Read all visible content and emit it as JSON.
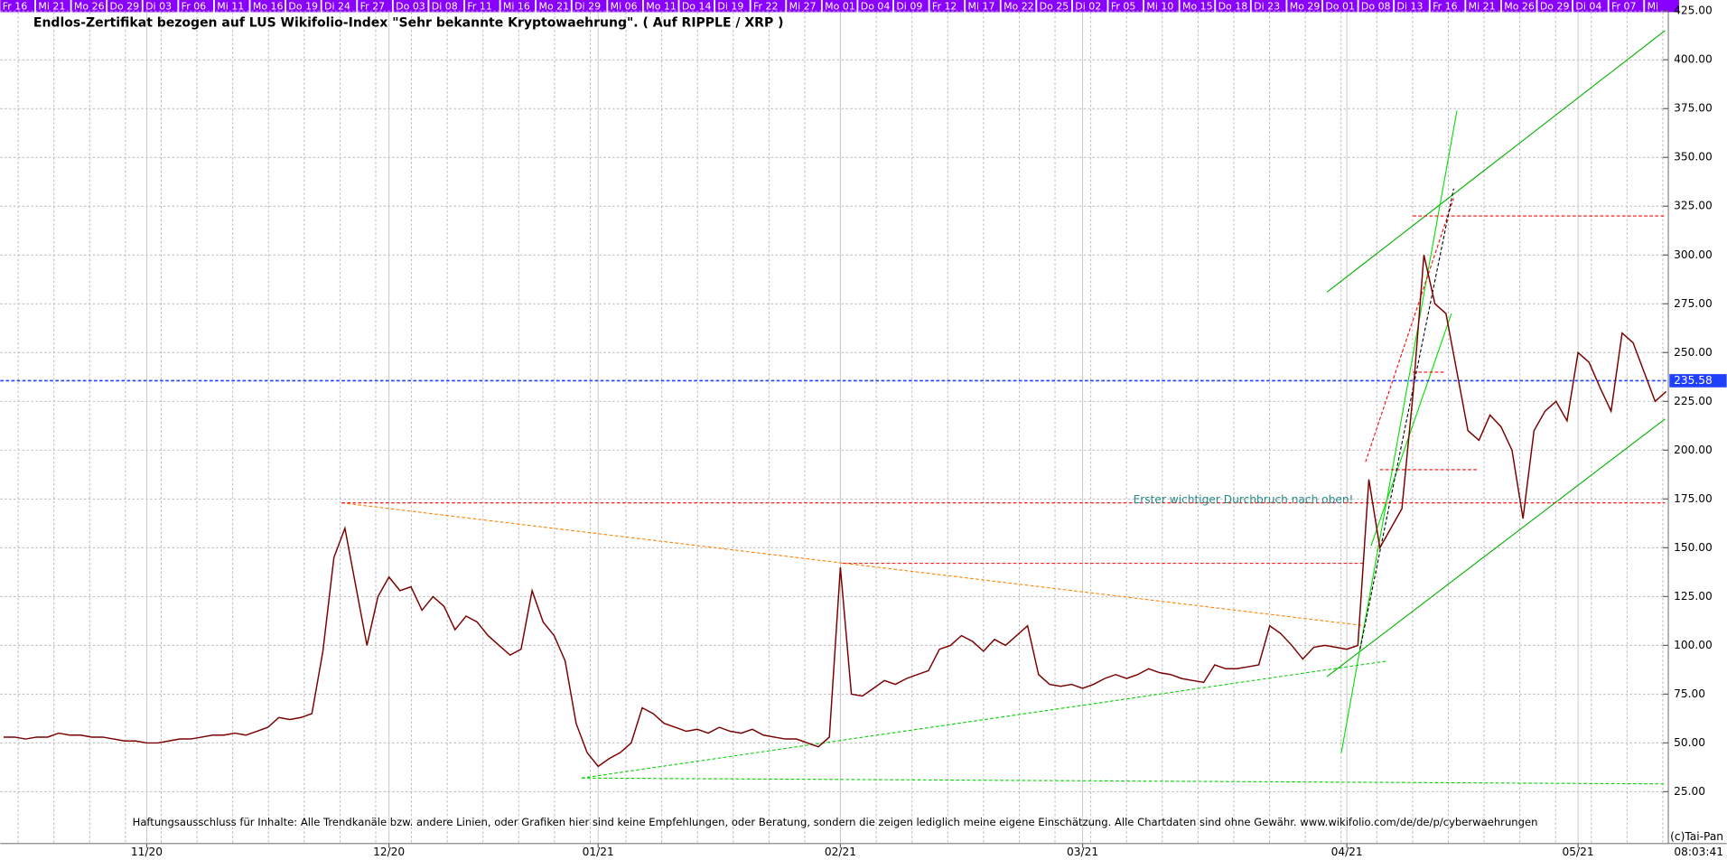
{
  "chart_data": {
    "type": "line",
    "title": "Endlos-Zertifikat bezogen auf LUS Wikifolio-Index \"Sehr bekannte Kryptowaehrung\". ( Auf RIPPLE / XRP )",
    "disclaimer": "Haftungsausschluss für Inhalte: Alle Trendkanäle bzw. andere Linien, oder Grafiken hier sind keine Empfehlungen, oder Beratung, sondern die zeigen lediglich meine eigene Einschätzung. Alle Chartdaten sind ohne Gewähr.  www.wikifolio.com/de/de/p/cyberwaehrungen",
    "annotation": {
      "text": "Erster wichtiger Durchbruch nach oben!",
      "x": 123,
      "y": 180
    },
    "copyright": "(c)Tai-Pan",
    "time": "08:03:41",
    "top_dates": [
      "Fr 16",
      "Mi 21",
      "Mo 26",
      "Do 29",
      "Di 03",
      "Fr 06",
      "Mi 11",
      "Mo 16",
      "Do 19",
      "Di 24",
      "Fr 27",
      "Do 03",
      "Di 08",
      "Fr 11",
      "Mi 16",
      "Mo 21",
      "Di 29",
      "Mi 06",
      "Mo 11",
      "Do 14",
      "Di 19",
      "Fr 22",
      "Mi 27",
      "Mo 01",
      "Do 04",
      "Di 09",
      "Fr 12",
      "Mi 17",
      "Mo 22",
      "Do 25",
      "Di 02",
      "Fr 05",
      "Mi 10",
      "Mo 15",
      "Do 18",
      "Di 23",
      "Mo 29",
      "Do 01",
      "Do 08",
      "Di 13",
      "Fr 16",
      "Mi 21",
      "Mo 26",
      "Do 29",
      "Di 04",
      "Fr 07",
      "Mi"
    ],
    "series": [
      {
        "color": "#7a0000",
        "values": [
          53,
          53,
          52,
          53,
          53,
          55,
          54,
          54,
          53,
          53,
          52,
          51,
          51,
          50,
          50,
          51,
          52,
          52,
          53,
          54,
          54,
          55,
          54,
          56,
          58,
          63,
          62,
          63,
          65,
          97,
          145,
          160,
          130,
          100,
          125,
          135,
          128,
          130,
          118,
          125,
          120,
          108,
          115,
          112,
          105,
          100,
          95,
          98,
          128,
          112,
          105,
          92,
          60,
          45,
          38,
          42,
          45,
          50,
          68,
          65,
          60,
          58,
          56,
          57,
          55,
          58,
          56,
          55,
          57,
          54,
          53,
          52,
          52,
          50,
          48,
          53,
          140,
          75,
          74,
          78,
          82,
          80,
          83,
          85,
          87,
          98,
          100,
          105,
          102,
          97,
          103,
          100,
          105,
          110,
          85,
          80,
          79,
          80,
          78,
          80,
          83,
          85,
          83,
          85,
          88,
          86,
          85,
          83,
          82,
          81,
          90,
          88,
          88,
          89,
          90,
          110,
          106,
          100,
          93,
          99,
          100,
          99,
          98,
          100,
          185,
          150,
          160,
          170,
          228,
          300,
          275,
          270,
          240,
          210,
          205,
          218,
          212,
          200,
          165,
          210,
          220,
          225,
          215,
          250,
          245,
          232,
          220,
          260,
          255,
          240,
          225,
          230
        ]
      }
    ],
    "xlim": [
      0,
      151
    ],
    "xticks": [
      {
        "value": 13,
        "label": "11/20"
      },
      {
        "value": 35,
        "label": "12/20"
      },
      {
        "value": 54,
        "label": "01/21"
      },
      {
        "value": 76,
        "label": "02/21"
      },
      {
        "value": 98,
        "label": "03/21"
      },
      {
        "value": 122,
        "label": "04/21"
      },
      {
        "value": 143,
        "label": "05/21"
      }
    ],
    "ylim": [
      25,
      425
    ],
    "yticks": [
      {
        "value": 25,
        "label": "25.00"
      },
      {
        "value": 50,
        "label": "50.00"
      },
      {
        "value": 75,
        "label": "75.00"
      },
      {
        "value": 100,
        "label": "100.00"
      },
      {
        "value": 125,
        "label": "125.00"
      },
      {
        "value": 150,
        "label": "150.00"
      },
      {
        "value": 175,
        "label": "175.00"
      },
      {
        "value": 200,
        "label": "200.00"
      },
      {
        "value": 225,
        "label": "225.00"
      },
      {
        "value": 250,
        "label": "250.00"
      },
      {
        "value": 275,
        "label": "275.00"
      },
      {
        "value": 300,
        "label": "300.00"
      },
      {
        "value": 325,
        "label": "325.00"
      },
      {
        "value": 350,
        "label": "350.00"
      },
      {
        "value": 375,
        "label": "375.00"
      },
      {
        "value": 400,
        "label": "400.00"
      },
      {
        "value": 425,
        "label": "425.00"
      }
    ],
    "grid": true,
    "last_price": {
      "value": 235.58,
      "label": "235.58",
      "color": "#2040ff"
    },
    "trendlines": [
      {
        "points": [
          120.2,
          281,
          150.9,
          415
        ],
        "color": "#00b000",
        "dashed": false
      },
      {
        "points": [
          120.2,
          84,
          150.9,
          216
        ],
        "color": "#00b000",
        "dashed": false
      },
      {
        "points": [
          121.5,
          45,
          132,
          374
        ],
        "color": "#00e000",
        "dashed": false
      },
      {
        "points": [
          124.2,
          151,
          131.5,
          270
        ],
        "color": "#00e000",
        "dashed": false
      },
      {
        "points": [
          52.5,
          32,
          125.7,
          92
        ],
        "color": "#00d000",
        "dashed": true
      },
      {
        "points": [
          52.5,
          32,
          150.9,
          29
        ],
        "color": "#00d000",
        "dashed": true
      },
      {
        "points": [
          30.7,
          173,
          123.7,
          110
        ],
        "color": "#ff8000",
        "dashed": true
      },
      {
        "points": [
          30.7,
          173,
          150.9,
          173
        ],
        "color": "#ff0000",
        "dashed": true
      },
      {
        "points": [
          76.2,
          142,
          123.5,
          142
        ],
        "color": "#ff0000",
        "dashed": true
      },
      {
        "points": [
          125,
          190,
          134,
          190
        ],
        "color": "#ff0000",
        "dashed": true
      },
      {
        "points": [
          128,
          320,
          151,
          320
        ],
        "color": "#ff0000",
        "dashed": true
      },
      {
        "points": [
          128,
          240,
          131,
          240
        ],
        "color": "#ff0000",
        "dashed": true
      },
      {
        "points": [
          123.7,
          194,
          131.7,
          329
        ],
        "color": "#ff0000",
        "dashed": true
      },
      {
        "points": [
          123.2,
          98,
          131.7,
          334
        ],
        "color": "#000000",
        "dashed": true
      }
    ]
  }
}
